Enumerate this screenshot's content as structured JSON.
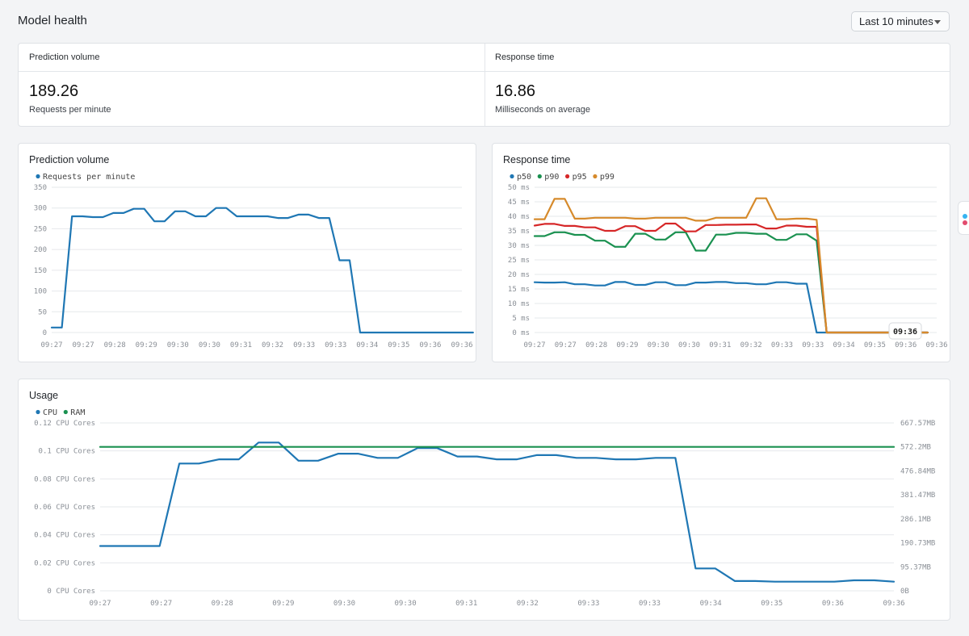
{
  "header": {
    "title": "Model health",
    "time_range": "Last 10 minutes"
  },
  "summary": {
    "left": {
      "label": "Prediction volume",
      "value": "189.26",
      "caption": "Requests per minute"
    },
    "right": {
      "label": "Response time",
      "value": "16.86",
      "caption": "Milliseconds on average"
    }
  },
  "chart_data": [
    {
      "type": "line",
      "title": "Prediction volume",
      "series": [
        {
          "name": "Requests per minute",
          "color": "#1f77b4",
          "x": [
            0,
            0.33,
            0.66,
            1,
            1.33,
            1.66,
            2,
            2.33,
            2.66,
            3,
            3.33,
            3.66,
            4,
            4.33,
            4.66,
            5,
            5.33,
            5.66,
            6,
            6.33,
            6.66,
            7,
            7.33,
            7.66,
            8,
            8.33,
            8.66,
            9,
            9.33,
            9.66,
            10,
            10.33,
            10.66,
            11,
            11.33,
            11.66,
            12,
            12.33,
            12.66,
            13,
            13.33,
            13.66
          ],
          "values": [
            12,
            12,
            280,
            280,
            278,
            278,
            288,
            288,
            298,
            298,
            268,
            268,
            292,
            292,
            280,
            280,
            300,
            300,
            280,
            280,
            280,
            280,
            276,
            276,
            284,
            284,
            276,
            276,
            174,
            174,
            0,
            0,
            0,
            0,
            0,
            0,
            0,
            0,
            0,
            0,
            0,
            0
          ]
        }
      ],
      "x_tick_labels": [
        "09:27",
        "09:27",
        "09:28",
        "09:29",
        "09:30",
        "09:30",
        "09:31",
        "09:32",
        "09:33",
        "09:33",
        "09:34",
        "09:35",
        "09:36",
        "09:36"
      ],
      "y_tick_labels": [
        "0",
        "50",
        "100",
        "150",
        "200",
        "250",
        "300",
        "350"
      ],
      "ylim": [
        0,
        350
      ]
    },
    {
      "type": "line",
      "title": "Response time",
      "series": [
        {
          "name": "p50",
          "color": "#1f77b4",
          "x": [
            0,
            0.33,
            0.66,
            1,
            1.33,
            1.66,
            2,
            2.33,
            2.66,
            3,
            3.33,
            3.66,
            4,
            4.33,
            4.66,
            5,
            5.33,
            5.66,
            6,
            6.33,
            6.66,
            7,
            7.33,
            7.66,
            8,
            8.33,
            8.66,
            9,
            9.33,
            9.66,
            10,
            10.33,
            10.66,
            11,
            11.33,
            11.66,
            12,
            12.33,
            12.66,
            13
          ],
          "values": [
            17.3,
            17.2,
            17.2,
            17.3,
            16.6,
            16.6,
            16.2,
            16.2,
            17.4,
            17.4,
            16.4,
            16.4,
            17.3,
            17.3,
            16.3,
            16.3,
            17.2,
            17.2,
            17.4,
            17.4,
            17,
            17,
            16.6,
            16.6,
            17.3,
            17.3,
            16.8,
            16.8,
            0,
            0,
            0,
            0,
            0,
            0,
            0,
            0,
            0,
            0,
            0,
            0
          ]
        },
        {
          "name": "p90",
          "color": "#1a9150",
          "x": [
            0,
            0.33,
            0.66,
            1,
            1.33,
            1.66,
            2,
            2.33,
            2.66,
            3,
            3.33,
            3.66,
            4,
            4.33,
            4.66,
            5,
            5.33,
            5.66,
            6,
            6.33,
            6.66,
            7,
            7.33,
            7.66,
            8,
            8.33,
            8.66,
            9,
            9.33,
            9.66,
            10,
            10.33,
            10.66,
            11,
            11.33,
            11.66,
            12,
            12.33,
            12.66,
            13
          ],
          "values": [
            33.2,
            33.2,
            34.5,
            34.5,
            33.6,
            33.6,
            31.6,
            31.6,
            29.5,
            29.5,
            34,
            34,
            32,
            32,
            34.5,
            34.5,
            28.2,
            28.2,
            33.7,
            33.7,
            34.3,
            34.3,
            34,
            34,
            31.9,
            31.9,
            33.8,
            33.8,
            31.6,
            0,
            0,
            0,
            0,
            0,
            0,
            0,
            0,
            0,
            0,
            0
          ]
        },
        {
          "name": "p95",
          "color": "#d62728",
          "x": [
            0,
            0.33,
            0.66,
            1,
            1.33,
            1.66,
            2,
            2.33,
            2.66,
            3,
            3.33,
            3.66,
            4,
            4.33,
            4.66,
            5,
            5.33,
            5.66,
            6,
            6.33,
            6.66,
            7,
            7.33,
            7.66,
            8,
            8.33,
            8.66,
            9,
            9.33,
            9.66,
            10,
            10.33,
            10.66,
            11,
            11.33,
            11.66,
            12,
            12.33,
            12.66,
            13
          ],
          "values": [
            36.8,
            37.4,
            37.4,
            36.7,
            36.7,
            36.2,
            36.2,
            35,
            35,
            36.6,
            36.6,
            35,
            35,
            37.5,
            37.5,
            34.8,
            34.8,
            37,
            37,
            37.1,
            37.1,
            37.2,
            37.2,
            35.8,
            35.8,
            36.8,
            36.8,
            36.4,
            36.4,
            0,
            0,
            0,
            0,
            0,
            0,
            0,
            0,
            0,
            0,
            0
          ]
        },
        {
          "name": "p99",
          "color": "#d68a2b",
          "x": [
            0,
            0.33,
            0.66,
            1,
            1.33,
            1.66,
            2,
            2.33,
            2.66,
            3,
            3.33,
            3.66,
            4,
            4.33,
            4.66,
            5,
            5.33,
            5.66,
            6,
            6.33,
            6.66,
            7,
            7.33,
            7.66,
            8,
            8.33,
            8.66,
            9,
            9.33,
            9.66,
            10,
            10.33,
            10.66,
            11,
            11.33,
            11.66,
            12,
            12.33,
            12.66,
            13
          ],
          "values": [
            39,
            39,
            46,
            46,
            39.2,
            39.2,
            39.5,
            39.5,
            39.5,
            39.5,
            39.2,
            39.2,
            39.5,
            39.5,
            39.5,
            39.5,
            38.5,
            38.5,
            39.5,
            39.5,
            39.5,
            39.5,
            46.2,
            46.2,
            39,
            39,
            39.2,
            39.2,
            38.8,
            0,
            0,
            0,
            0,
            0,
            0,
            0,
            0,
            0,
            0,
            0
          ]
        }
      ],
      "x_tick_labels": [
        "09:27",
        "09:27",
        "09:28",
        "09:29",
        "09:30",
        "09:30",
        "09:31",
        "09:32",
        "09:33",
        "09:33",
        "09:34",
        "09:35",
        "09:36",
        "09:36"
      ],
      "y_tick_labels": [
        "0 ms",
        "5 ms",
        "10 ms",
        "15 ms",
        "20 ms",
        "25 ms",
        "30 ms",
        "35 ms",
        "40 ms",
        "45 ms",
        "50 ms"
      ],
      "ylim": [
        0,
        50
      ],
      "tooltip": "09:36"
    },
    {
      "type": "line",
      "title": "Usage",
      "series": [
        {
          "name": "CPU",
          "color": "#1f77b4",
          "axis": "left",
          "x": [
            0,
            0.33,
            0.66,
            1,
            1.33,
            1.66,
            2,
            2.33,
            2.66,
            3,
            3.33,
            3.66,
            4,
            4.33,
            4.66,
            5,
            5.33,
            5.66,
            6,
            6.33,
            6.66,
            7,
            7.33,
            7.66,
            8,
            8.33,
            8.66,
            9,
            9.33,
            9.66,
            10,
            10.33,
            10.66,
            11,
            11.33,
            11.66,
            12,
            12.33,
            12.66,
            13,
            13.33
          ],
          "values": [
            0.032,
            0.032,
            0.032,
            0.032,
            0.091,
            0.091,
            0.094,
            0.094,
            0.106,
            0.106,
            0.093,
            0.093,
            0.098,
            0.098,
            0.095,
            0.095,
            0.102,
            0.102,
            0.096,
            0.096,
            0.094,
            0.094,
            0.097,
            0.097,
            0.095,
            0.095,
            0.094,
            0.094,
            0.095,
            0.095,
            0.016,
            0.016,
            0.007,
            0.007,
            0.0065,
            0.0065,
            0.0065,
            0.0065,
            0.0075,
            0.0075,
            0.0065
          ]
        },
        {
          "name": "RAM",
          "color": "#1a9150",
          "axis": "right",
          "x": [
            0,
            13.33
          ],
          "values": [
            572.2,
            572.2
          ]
        }
      ],
      "x_tick_labels": [
        "09:27",
        "09:27",
        "09:28",
        "09:29",
        "09:30",
        "09:30",
        "09:31",
        "09:32",
        "09:33",
        "09:33",
        "09:34",
        "09:35",
        "09:36",
        "09:36"
      ],
      "y_tick_labels": [
        "0 CPU Cores",
        "0.02 CPU Cores",
        "0.04 CPU Cores",
        "0.06 CPU Cores",
        "0.08 CPU Cores",
        "0.1 CPU Cores",
        "0.12 CPU Cores"
      ],
      "y2_tick_labels": [
        "0B",
        "95.37MB",
        "190.73MB",
        "286.1MB",
        "381.47MB",
        "476.84MB",
        "572.2MB",
        "667.57MB"
      ],
      "ylim": [
        0,
        0.12
      ],
      "y2lim": [
        0,
        667.57
      ]
    }
  ]
}
